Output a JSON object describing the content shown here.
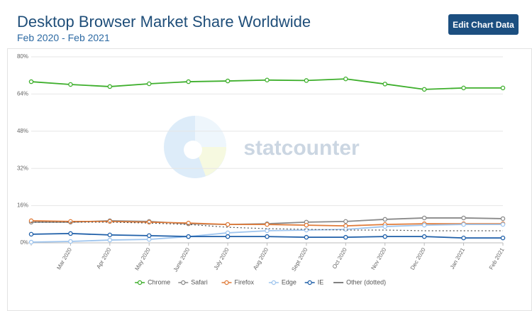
{
  "header": {
    "title": "Desktop Browser Market Share Worldwide",
    "subtitle": "Feb 2020 - Feb 2021",
    "button": "Edit Chart Data"
  },
  "chart_data": {
    "type": "line",
    "watermark": "statcounter",
    "categories": [
      null,
      "Mar 2020",
      "Apr 2020",
      "May 2020",
      "June 2020",
      "July 2020",
      "Aug 2020",
      "Sept 2020",
      "Oct 2020",
      "Nov 2020",
      "Dec 2020",
      "Jan 2021",
      "Feb 2021"
    ],
    "ylim": [
      0,
      80
    ],
    "yticks": [
      {
        "value": 0,
        "label": "0%"
      },
      {
        "value": 16,
        "label": "16%"
      },
      {
        "value": 32,
        "label": "32%"
      },
      {
        "value": 48,
        "label": "48%"
      },
      {
        "value": 64,
        "label": "64%"
      },
      {
        "value": 80,
        "label": "80%"
      }
    ],
    "grid": true,
    "legend": "bottom",
    "series": [
      {
        "name": "Chrome",
        "color": "#3eaf2c",
        "markers": true,
        "dotted": false,
        "values": [
          69.3,
          68.1,
          67.2,
          68.4,
          69.3,
          69.6,
          70.0,
          69.8,
          70.5,
          68.3,
          66.0,
          66.6,
          66.6
        ]
      },
      {
        "name": "Safari",
        "color": "#8a8a8a",
        "markers": true,
        "dotted": false,
        "values": [
          8.9,
          8.9,
          9.5,
          9.2,
          8.2,
          7.9,
          8.2,
          8.9,
          9.2,
          10.1,
          10.7,
          10.7,
          10.4
        ]
      },
      {
        "name": "Firefox",
        "color": "#e07b39",
        "markers": true,
        "dotted": false,
        "values": [
          9.5,
          9.2,
          9.2,
          8.9,
          8.5,
          7.9,
          7.9,
          7.6,
          7.3,
          7.9,
          8.2,
          8.2,
          8.2
        ]
      },
      {
        "name": "Edge",
        "color": "#9fc5ee",
        "markers": true,
        "dotted": false,
        "values": [
          0.3,
          0.6,
          1.2,
          1.5,
          2.7,
          4.3,
          5.2,
          5.5,
          5.8,
          7.0,
          7.6,
          7.9,
          7.9
        ]
      },
      {
        "name": "IE",
        "color": "#1f5fa8",
        "markers": true,
        "dotted": false,
        "values": [
          3.7,
          4.0,
          3.4,
          3.1,
          2.7,
          2.7,
          2.7,
          2.4,
          2.4,
          2.7,
          2.7,
          2.1,
          2.1
        ]
      },
      {
        "name": "Other (dotted)",
        "color": "#555555",
        "markers": false,
        "dotted": true,
        "values": [
          8.9,
          8.9,
          8.9,
          8.5,
          7.9,
          6.7,
          6.1,
          5.8,
          5.5,
          5.5,
          5.2,
          5.2,
          5.2
        ]
      }
    ]
  }
}
